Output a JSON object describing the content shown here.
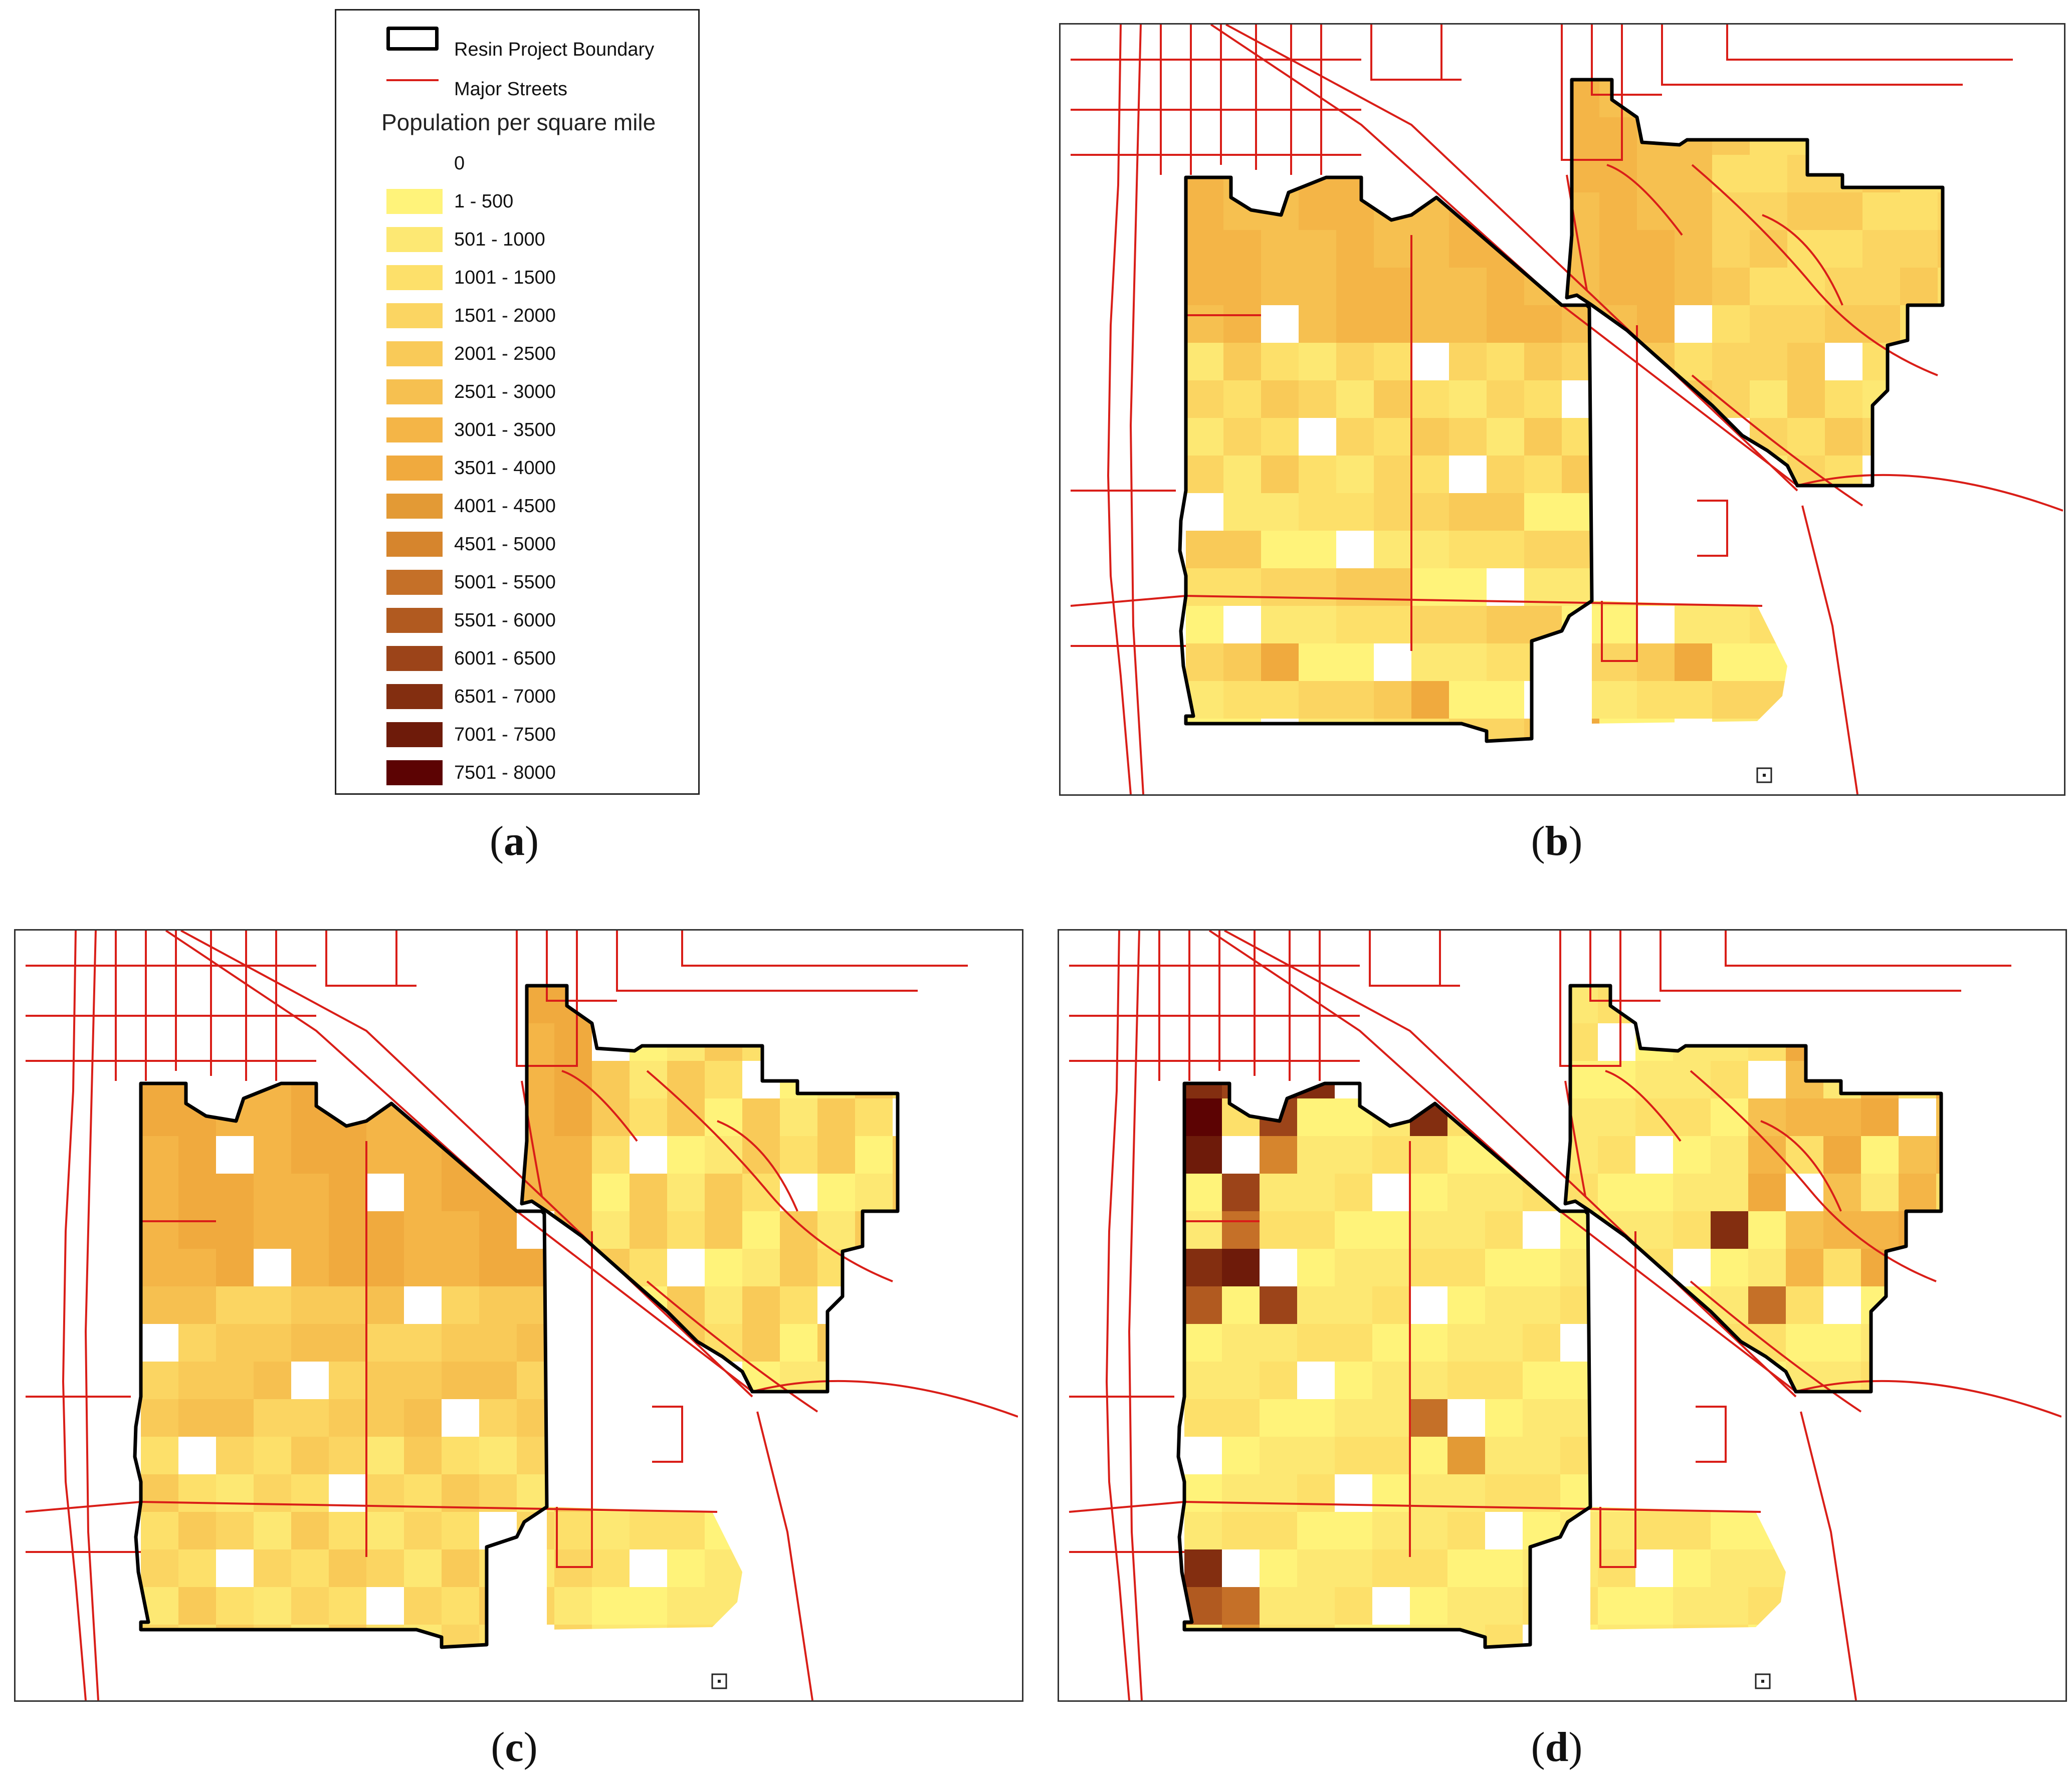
{
  "legend": {
    "boundary_label": "Resin Project Boundary",
    "streets_label": "Major Streets",
    "title": "Population per square mile",
    "classes": [
      {
        "label": "0",
        "color": "#ffffff"
      },
      {
        "label": "1 - 500",
        "color": "#fff37a"
      },
      {
        "label": "501 - 1000",
        "color": "#fde873"
      },
      {
        "label": "1001 - 1500",
        "color": "#fde06a"
      },
      {
        "label": "1501 - 2000",
        "color": "#fbd562"
      },
      {
        "label": "2001 - 2500",
        "color": "#f9ca58"
      },
      {
        "label": "2501 - 3000",
        "color": "#f6c050"
      },
      {
        "label": "3001 - 3500",
        "color": "#f4b547"
      },
      {
        "label": "3501 - 4000",
        "color": "#f0aa3e"
      },
      {
        "label": "4001 - 4500",
        "color": "#e39a35"
      },
      {
        "label": "4501 - 5000",
        "color": "#d6852d"
      },
      {
        "label": "5001 - 5500",
        "color": "#c57028"
      },
      {
        "label": "5501 - 6000",
        "color": "#b15a20"
      },
      {
        "label": "6001 - 6500",
        "color": "#9c4419"
      },
      {
        "label": "6501 - 7000",
        "color": "#832e10"
      },
      {
        "label": "7001 - 7500",
        "color": "#6e1b0a"
      },
      {
        "label": "7501 - 8000",
        "color": "#5c0303"
      }
    ]
  },
  "captions": {
    "a": "a",
    "b": "b",
    "c": "c",
    "d": "d"
  },
  "colors": {
    "street": "#d91e18",
    "boundary": "#000000"
  }
}
